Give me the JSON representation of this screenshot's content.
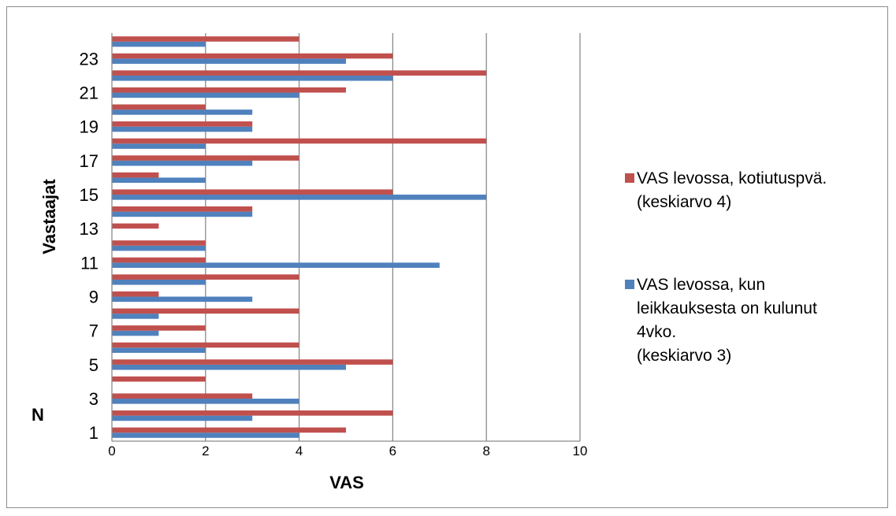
{
  "chart_data": {
    "type": "bar",
    "orientation": "horizontal",
    "categories": [
      "1",
      "2",
      "3",
      "4",
      "5",
      "6",
      "7",
      "8",
      "9",
      "10",
      "11",
      "12",
      "13",
      "14",
      "15",
      "16",
      "17",
      "18",
      "19",
      "20",
      "21",
      "22",
      "23",
      "24"
    ],
    "y_tick_labels": [
      "1",
      "3",
      "5",
      "7",
      "9",
      "11",
      "13",
      "15",
      "17",
      "19",
      "21",
      "23"
    ],
    "series": [
      {
        "name": "VAS levossa, kun leikkauksesta on kulunut 4vko. (keskiarvo 3)",
        "legend_lines": [
          "VAS levossa, kun",
          "leikkauksesta on kulunut",
          "4vko.",
          "(keskiarvo 3)"
        ],
        "color": "#4f81bd",
        "values": [
          4,
          3,
          4,
          0,
          5,
          2,
          1,
          1,
          3,
          2,
          7,
          2,
          0,
          3,
          8,
          2,
          3,
          2,
          3,
          3,
          4,
          6,
          5,
          2
        ]
      },
      {
        "name": "VAS levossa, kotiutuspvä. (keskiarvo 4)",
        "legend_lines": [
          "VAS levossa, kotiutuspvä.",
          "(keskiarvo 4)"
        ],
        "color": "#c0504d",
        "values": [
          5,
          6,
          3,
          2,
          6,
          4,
          2,
          4,
          1,
          4,
          2,
          2,
          1,
          3,
          6,
          1,
          4,
          8,
          3,
          2,
          5,
          8,
          6,
          4
        ]
      }
    ],
    "xlabel": "VAS",
    "ylabel": "Vastaajat",
    "extra_label": "N",
    "xlim": [
      0,
      10
    ],
    "x_ticks": [
      "0",
      "2",
      "4",
      "6",
      "8",
      "10"
    ],
    "grid": "vertical",
    "legend_position": "right"
  }
}
